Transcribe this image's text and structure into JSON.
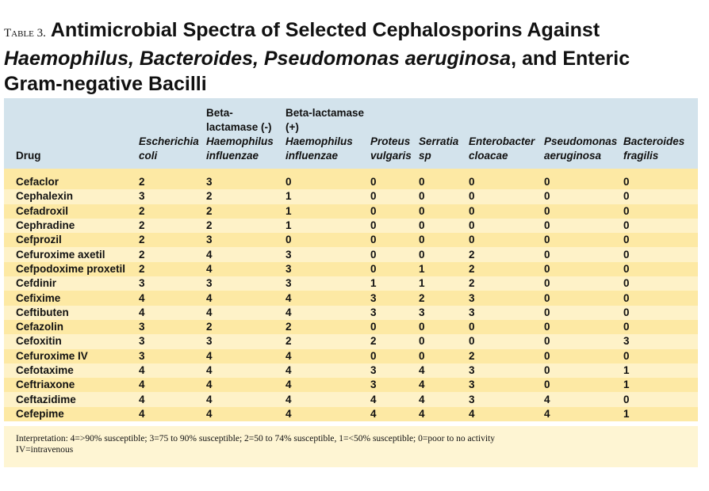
{
  "title": {
    "label": "Table 3.",
    "line1": "Antimicrobial Spectra of Selected Cephalosporins Against",
    "italic": "Haemophilus, Bacteroides, Pseudomonas aeruginosa",
    "rest": ", and Enteric Gram-negative Bacilli"
  },
  "table": {
    "header": [
      {
        "plain": "Drug"
      },
      {
        "italic": "Escherichia coli"
      },
      {
        "plain": "Beta-lactamase (-)",
        "italic": "Haemophilus influenzae"
      },
      {
        "plain": "Beta-lactamase (+)",
        "italic": "Haemophilus influenzae"
      },
      {
        "italic": "Proteus vulgaris"
      },
      {
        "italic": "Serratia sp"
      },
      {
        "italic": "Enterobacter cloacae"
      },
      {
        "italic": "Pseudomonas aeruginosa"
      },
      {
        "italic": "Bacteroides fragilis"
      }
    ],
    "rows": [
      [
        "Cefaclor",
        2,
        3,
        0,
        0,
        0,
        0,
        0,
        0
      ],
      [
        "Cephalexin",
        3,
        2,
        1,
        0,
        0,
        0,
        0,
        0
      ],
      [
        "Cefadroxil",
        2,
        2,
        1,
        0,
        0,
        0,
        0,
        0
      ],
      [
        "Cephradine",
        2,
        2,
        1,
        0,
        0,
        0,
        0,
        0
      ],
      [
        "Cefprozil",
        2,
        3,
        0,
        0,
        0,
        0,
        0,
        0
      ],
      [
        "Cefuroxime axetil",
        2,
        4,
        3,
        0,
        0,
        2,
        0,
        0
      ],
      [
        "Cefpodoxime proxetil",
        2,
        4,
        3,
        0,
        1,
        2,
        0,
        0
      ],
      [
        "Cefdinir",
        3,
        3,
        3,
        1,
        1,
        2,
        0,
        0
      ],
      [
        "Cefixime",
        4,
        4,
        4,
        3,
        2,
        3,
        0,
        0
      ],
      [
        "Ceftibuten",
        4,
        4,
        4,
        3,
        3,
        3,
        0,
        0
      ],
      [
        "Cefazolin",
        3,
        2,
        2,
        0,
        0,
        0,
        0,
        0
      ],
      [
        "Cefoxitin",
        3,
        3,
        2,
        2,
        0,
        0,
        0,
        3
      ],
      [
        "Cefuroxime IV",
        3,
        4,
        4,
        0,
        0,
        2,
        0,
        0
      ],
      [
        "Cefotaxime",
        4,
        4,
        4,
        3,
        4,
        3,
        0,
        1
      ],
      [
        "Ceftriaxone",
        4,
        4,
        4,
        3,
        4,
        3,
        0,
        1
      ],
      [
        "Ceftazidime",
        4,
        4,
        4,
        4,
        4,
        3,
        4,
        0
      ],
      [
        "Cefepime",
        4,
        4,
        4,
        4,
        4,
        4,
        4,
        1
      ]
    ]
  },
  "footnotes": [
    "Interpretation: 4=>90% susceptible; 3=75 to 90% susceptible; 2=50 to 74% susceptible, 1=<50% susceptible; 0=poor to no activity",
    "IV=intravenous"
  ]
}
